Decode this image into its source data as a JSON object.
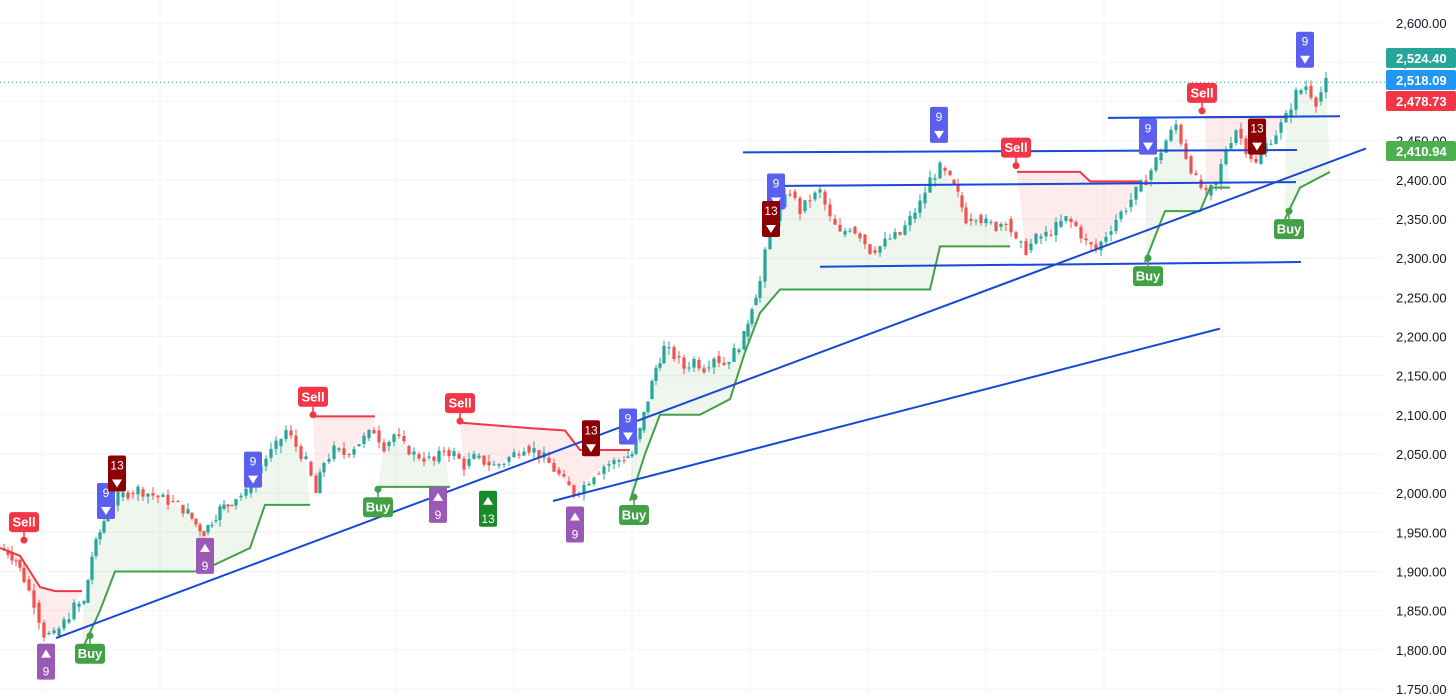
{
  "chart_data": {
    "type": "candlestick",
    "ylim": [
      1750,
      2600
    ],
    "y_ticks": [
      "1,750.00",
      "1,800.00",
      "1,850.00",
      "1,900.00",
      "1,950.00",
      "2,000.00",
      "2,050.00",
      "2,100.00",
      "2,150.00",
      "2,200.00",
      "2,250.00",
      "2,300.00",
      "2,350.00",
      "2,400.00",
      "2,450.00",
      "2,500.00",
      "2,550.00",
      "2,600.00"
    ],
    "grid": true,
    "price_tags": [
      {
        "label": "2,524.40",
        "value": 2524.4,
        "color": "#26a69a"
      },
      {
        "label": "2,518.09",
        "value": 2518.09,
        "color": "#2196f3"
      },
      {
        "label": "2,478.73",
        "value": 2478.73,
        "color": "#f23645"
      },
      {
        "label": "2,410.94",
        "value": 2410.94,
        "color": "#4caf50"
      }
    ],
    "last_price_line": 2524.4,
    "price_path": [
      [
        0,
        1930
      ],
      [
        8,
        1925
      ],
      [
        16,
        1915
      ],
      [
        24,
        1890
      ],
      [
        34,
        1860
      ],
      [
        44,
        1820
      ],
      [
        54,
        1818
      ],
      [
        64,
        1835
      ],
      [
        74,
        1855
      ],
      [
        84,
        1860
      ],
      [
        92,
        1920
      ],
      [
        100,
        1950
      ],
      [
        108,
        1980
      ],
      [
        118,
        1995
      ],
      [
        128,
        2000
      ],
      [
        138,
        2005
      ],
      [
        148,
        2000
      ],
      [
        158,
        1995
      ],
      [
        168,
        1990
      ],
      [
        178,
        1985
      ],
      [
        188,
        1975
      ],
      [
        196,
        1960
      ],
      [
        204,
        1950
      ],
      [
        212,
        1965
      ],
      [
        220,
        1980
      ],
      [
        228,
        1985
      ],
      [
        236,
        1995
      ],
      [
        246,
        2000
      ],
      [
        256,
        2025
      ],
      [
        266,
        2045
      ],
      [
        276,
        2060
      ],
      [
        286,
        2080
      ],
      [
        296,
        2060
      ],
      [
        306,
        2040
      ],
      [
        316,
        2000
      ],
      [
        324,
        2040
      ],
      [
        334,
        2055
      ],
      [
        344,
        2050
      ],
      [
        354,
        2060
      ],
      [
        364,
        2070
      ],
      [
        374,
        2080
      ],
      [
        384,
        2060
      ],
      [
        394,
        2075
      ],
      [
        404,
        2060
      ],
      [
        414,
        2050
      ],
      [
        424,
        2045
      ],
      [
        434,
        2040
      ],
      [
        444,
        2055
      ],
      [
        454,
        2050
      ],
      [
        464,
        2035
      ],
      [
        474,
        2045
      ],
      [
        484,
        2040
      ],
      [
        494,
        2035
      ],
      [
        504,
        2040
      ],
      [
        514,
        2050
      ],
      [
        524,
        2060
      ],
      [
        534,
        2055
      ],
      [
        544,
        2045
      ],
      [
        554,
        2030
      ],
      [
        564,
        2015
      ],
      [
        574,
        2000
      ],
      [
        584,
        2010
      ],
      [
        594,
        2025
      ],
      [
        604,
        2035
      ],
      [
        614,
        2040
      ],
      [
        624,
        2045
      ],
      [
        632,
        2050
      ],
      [
        640,
        2080
      ],
      [
        648,
        2120
      ],
      [
        656,
        2160
      ],
      [
        664,
        2185
      ],
      [
        674,
        2175
      ],
      [
        684,
        2160
      ],
      [
        694,
        2170
      ],
      [
        704,
        2160
      ],
      [
        714,
        2175
      ],
      [
        724,
        2165
      ],
      [
        734,
        2180
      ],
      [
        744,
        2200
      ],
      [
        752,
        2240
      ],
      [
        760,
        2270
      ],
      [
        770,
        2340
      ],
      [
        780,
        2365
      ],
      [
        790,
        2385
      ],
      [
        800,
        2360
      ],
      [
        810,
        2375
      ],
      [
        820,
        2385
      ],
      [
        830,
        2350
      ],
      [
        840,
        2330
      ],
      [
        850,
        2340
      ],
      [
        860,
        2330
      ],
      [
        870,
        2310
      ],
      [
        880,
        2315
      ],
      [
        890,
        2325
      ],
      [
        900,
        2330
      ],
      [
        910,
        2350
      ],
      [
        920,
        2370
      ],
      [
        930,
        2400
      ],
      [
        940,
        2415
      ],
      [
        950,
        2400
      ],
      [
        958,
        2380
      ],
      [
        966,
        2350
      ],
      [
        976,
        2355
      ],
      [
        986,
        2345
      ],
      [
        996,
        2340
      ],
      [
        1006,
        2350
      ],
      [
        1016,
        2320
      ],
      [
        1026,
        2310
      ],
      [
        1036,
        2325
      ],
      [
        1046,
        2330
      ],
      [
        1056,
        2340
      ],
      [
        1066,
        2350
      ],
      [
        1076,
        2340
      ],
      [
        1086,
        2320
      ],
      [
        1096,
        2310
      ],
      [
        1106,
        2330
      ],
      [
        1116,
        2350
      ],
      [
        1126,
        2365
      ],
      [
        1136,
        2385
      ],
      [
        1146,
        2400
      ],
      [
        1156,
        2425
      ],
      [
        1166,
        2450
      ],
      [
        1176,
        2470
      ],
      [
        1186,
        2430
      ],
      [
        1196,
        2400
      ],
      [
        1206,
        2380
      ],
      [
        1216,
        2395
      ],
      [
        1226,
        2440
      ],
      [
        1236,
        2465
      ],
      [
        1246,
        2440
      ],
      [
        1256,
        2420
      ],
      [
        1266,
        2445
      ],
      [
        1276,
        2460
      ],
      [
        1286,
        2480
      ],
      [
        1296,
        2510
      ],
      [
        1306,
        2520
      ],
      [
        1316,
        2500
      ],
      [
        1326,
        2524
      ]
    ],
    "trail_segments": [
      {
        "color": "#f23645",
        "points": [
          [
            0,
            1930
          ],
          [
            20,
            1920
          ],
          [
            40,
            1880
          ],
          [
            55,
            1875
          ],
          [
            82,
            1875
          ]
        ]
      },
      {
        "color": "#43a047",
        "points": [
          [
            82,
            1800
          ],
          [
            100,
            1850
          ],
          [
            115,
            1900
          ],
          [
            140,
            1900
          ],
          [
            200,
            1900
          ],
          [
            250,
            1930
          ],
          [
            265,
            1985
          ],
          [
            310,
            1985
          ]
        ]
      },
      {
        "color": "#f23645",
        "points": [
          [
            313,
            2098
          ],
          [
            375,
            2098
          ]
        ]
      },
      {
        "color": "#43a047",
        "points": [
          [
            378,
            2008
          ],
          [
            450,
            2008
          ]
        ]
      },
      {
        "color": "#f23645",
        "points": [
          [
            460,
            2090
          ],
          [
            530,
            2083
          ],
          [
            565,
            2080
          ],
          [
            580,
            2055
          ],
          [
            630,
            2055
          ]
        ]
      },
      {
        "color": "#43a047",
        "points": [
          [
            630,
            1990
          ],
          [
            645,
            2050
          ],
          [
            660,
            2100
          ],
          [
            700,
            2100
          ],
          [
            730,
            2120
          ],
          [
            745,
            2180
          ],
          [
            760,
            2230
          ],
          [
            780,
            2260
          ],
          [
            930,
            2260
          ],
          [
            940,
            2315
          ],
          [
            1010,
            2315
          ]
        ]
      },
      {
        "color": "#f23645",
        "points": [
          [
            1017,
            2410
          ],
          [
            1080,
            2410
          ],
          [
            1090,
            2398
          ],
          [
            1140,
            2398
          ]
        ]
      },
      {
        "color": "#43a047",
        "points": [
          [
            1145,
            2295
          ],
          [
            1165,
            2360
          ],
          [
            1200,
            2360
          ],
          [
            1210,
            2390
          ],
          [
            1230,
            2390
          ]
        ]
      },
      {
        "color": "#f23645",
        "points": [
          [
            1205,
            2480
          ],
          [
            1285,
            2480
          ]
        ]
      },
      {
        "color": "#43a047",
        "points": [
          [
            1285,
            2350
          ],
          [
            1300,
            2390
          ],
          [
            1315,
            2400
          ],
          [
            1330,
            2410
          ]
        ]
      }
    ],
    "trendlines": [
      {
        "points": [
          [
            56,
            1815
          ],
          [
            1366,
            2440
          ]
        ]
      },
      {
        "points": [
          [
            553,
            1990
          ],
          [
            1220,
            2210
          ]
        ]
      },
      {
        "points": [
          [
            743,
            2435
          ],
          [
            1297,
            2438
          ]
        ]
      },
      {
        "points": [
          [
            770,
            2392
          ],
          [
            1296,
            2397
          ]
        ]
      },
      {
        "points": [
          [
            820,
            2289
          ],
          [
            1301,
            2295
          ]
        ]
      },
      {
        "points": [
          [
            1108,
            2479
          ],
          [
            1340,
            2481
          ]
        ]
      }
    ],
    "signals": [
      {
        "label": "Sell",
        "kind": "sell",
        "x": 24,
        "y": 1940
      },
      {
        "label": "Buy",
        "kind": "buy",
        "x": 90,
        "y": 1818
      },
      {
        "label": "Sell",
        "kind": "sell",
        "x": 313,
        "y": 2100
      },
      {
        "label": "Buy",
        "kind": "buy",
        "x": 378,
        "y": 2005
      },
      {
        "label": "Sell",
        "kind": "sell",
        "x": 460,
        "y": 2092
      },
      {
        "label": "Buy",
        "kind": "buy",
        "x": 634,
        "y": 1995
      },
      {
        "label": "Sell",
        "kind": "sell",
        "x": 1016,
        "y": 2418
      },
      {
        "label": "Buy",
        "kind": "buy",
        "x": 1148,
        "y": 2300
      },
      {
        "label": "Sell",
        "kind": "sell",
        "x": 1202,
        "y": 2488
      },
      {
        "label": "Buy",
        "kind": "buy",
        "x": 1289,
        "y": 2360
      }
    ],
    "td_counts": [
      {
        "label": "9",
        "direction": "down",
        "color": "#5b5fef",
        "x": 106,
        "y": 1990
      },
      {
        "label": "13",
        "direction": "down",
        "color": "#8b0000",
        "x": 117,
        "y": 2025
      },
      {
        "label": "9",
        "direction": "down",
        "color": "#5b5fef",
        "x": 253,
        "y": 2030
      },
      {
        "label": "9",
        "direction": "down",
        "color": "#5b5fef",
        "x": 628,
        "y": 2085
      },
      {
        "label": "13",
        "direction": "down",
        "color": "#8b0000",
        "x": 591,
        "y": 2070
      },
      {
        "label": "9",
        "direction": "down",
        "color": "#5b5fef",
        "x": 776,
        "y": 2385
      },
      {
        "label": "13",
        "direction": "down",
        "color": "#8b0000",
        "x": 771,
        "y": 2350
      },
      {
        "label": "9",
        "direction": "down",
        "color": "#5b5fef",
        "x": 939,
        "y": 2470
      },
      {
        "label": "9",
        "direction": "down",
        "color": "#5b5fef",
        "x": 1148,
        "y": 2455
      },
      {
        "label": "13",
        "direction": "down",
        "color": "#8b0000",
        "x": 1257,
        "y": 2455
      },
      {
        "label": "9",
        "direction": "down",
        "color": "#5b5fef",
        "x": 1305,
        "y": 2566
      },
      {
        "label": "9",
        "direction": "up",
        "color": "#9b59b6",
        "x": 46,
        "y": 1785
      },
      {
        "label": "9",
        "direction": "up",
        "color": "#9b59b6",
        "x": 205,
        "y": 1920
      },
      {
        "label": "9",
        "direction": "up",
        "color": "#9b59b6",
        "x": 438,
        "y": 1985
      },
      {
        "label": "13",
        "direction": "up",
        "color": "#1b8a2a",
        "x": 488,
        "y": 1980
      },
      {
        "label": "9",
        "direction": "up",
        "color": "#9b59b6",
        "x": 575,
        "y": 1960
      }
    ]
  }
}
